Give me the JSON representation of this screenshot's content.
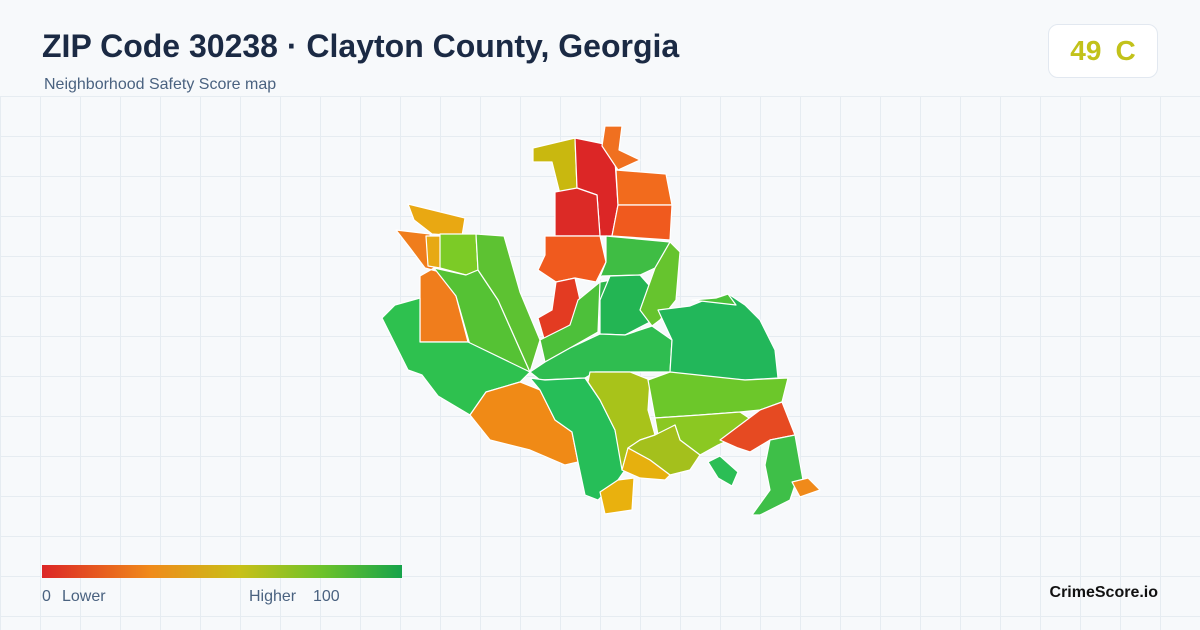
{
  "header": {
    "title": "ZIP Code 30238 · Clayton County, Georgia",
    "subtitle": "Neighborhood Safety Score map"
  },
  "score": {
    "value": "49",
    "grade": "C"
  },
  "legend": {
    "min": "0",
    "min_label": "Lower",
    "max_label": "Higher",
    "max": "100"
  },
  "brand": "CrimeScore.io"
}
